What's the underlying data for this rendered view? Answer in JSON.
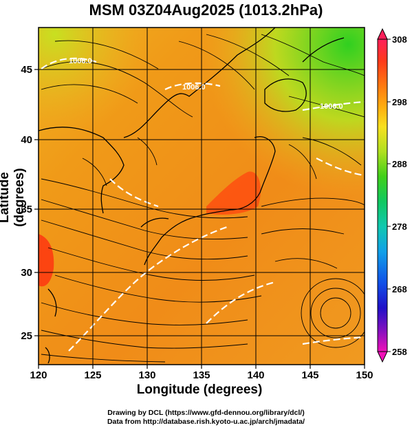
{
  "title": "MSM 03Z04Aug2025 (1013.2hPa)",
  "axes": {
    "xlabel": "Longitude (degrees)",
    "ylabel": "Latitude  (degrees)",
    "xticks": [
      "120",
      "125",
      "130",
      "135",
      "140",
      "145",
      "150"
    ],
    "yticks": [
      "25",
      "30",
      "35",
      "40",
      "45"
    ]
  },
  "colorbar": {
    "ticks": [
      "308",
      "298",
      "288",
      "278",
      "268",
      "258"
    ],
    "colors": [
      "#ff1f5a",
      "#ff3a1a",
      "#ff6a10",
      "#ff9a0a",
      "#ffc81a",
      "#f0e620",
      "#b0e020",
      "#4ad61a",
      "#10c840",
      "#10c8a0",
      "#10b8e0",
      "#1080f0",
      "#1040e0",
      "#2010c8",
      "#8010c0",
      "#e010c0"
    ]
  },
  "contour_labels": [
    "1006.0",
    "1006.0",
    "1006.0"
  ],
  "credits": {
    "line1": "Drawing by DCL (https://www.gfd-dennou.org/library/dcl/)",
    "line2": "Data from http://database.rish.kyoto-u.ac.jp/arch/jmadata/"
  }
}
